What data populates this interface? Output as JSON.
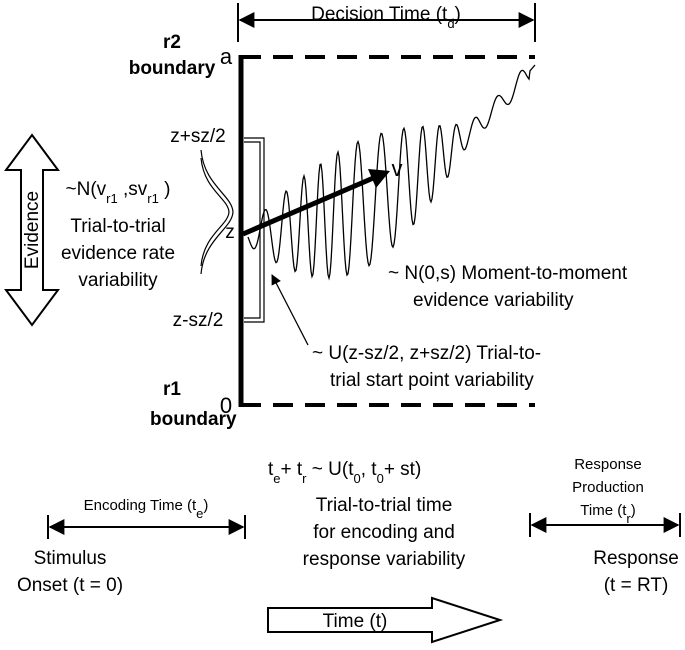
{
  "labels": {
    "decision_time": [
      "Decision Time (t",
      "d",
      ")"
    ],
    "r2_boundary": [
      "r2",
      "boundary"
    ],
    "upper_bound": "a",
    "start_upper": "z+sz/2",
    "drift_dist": [
      "~N(v",
      "r1",
      " ,sv",
      "r1",
      " )"
    ],
    "drift_var": [
      "Trial-to-trial",
      "evidence rate",
      "variability"
    ],
    "evidence": "Evidence",
    "start_point": "z",
    "drift": "v",
    "start_lower": "z-sz/2",
    "noise": [
      "~ N(0,s) Moment-to-moment",
      "evidence variability"
    ],
    "start_var": [
      "~ U(z-sz/2, z+sz/2) Trial-to-",
      "trial start point variability"
    ],
    "r1_boundary": [
      "r1",
      "boundary"
    ],
    "lower_bound": "0",
    "nondecision": [
      "t",
      "e",
      "+ t",
      "r",
      " ~ U(t",
      "0",
      ", t",
      "0",
      "+ st)"
    ],
    "nondecision_var": [
      "Trial-to-trial time",
      "for encoding and",
      "response variability"
    ],
    "encoding_time": [
      "Encoding Time (t",
      "e",
      ")"
    ],
    "response_time": [
      "Response",
      "Production",
      "Time (t",
      "r",
      ")"
    ],
    "stimulus": [
      "Stimulus",
      "Onset (t = 0)"
    ],
    "response": [
      "Response",
      "(t = RT)"
    ],
    "time": "Time (t)"
  }
}
